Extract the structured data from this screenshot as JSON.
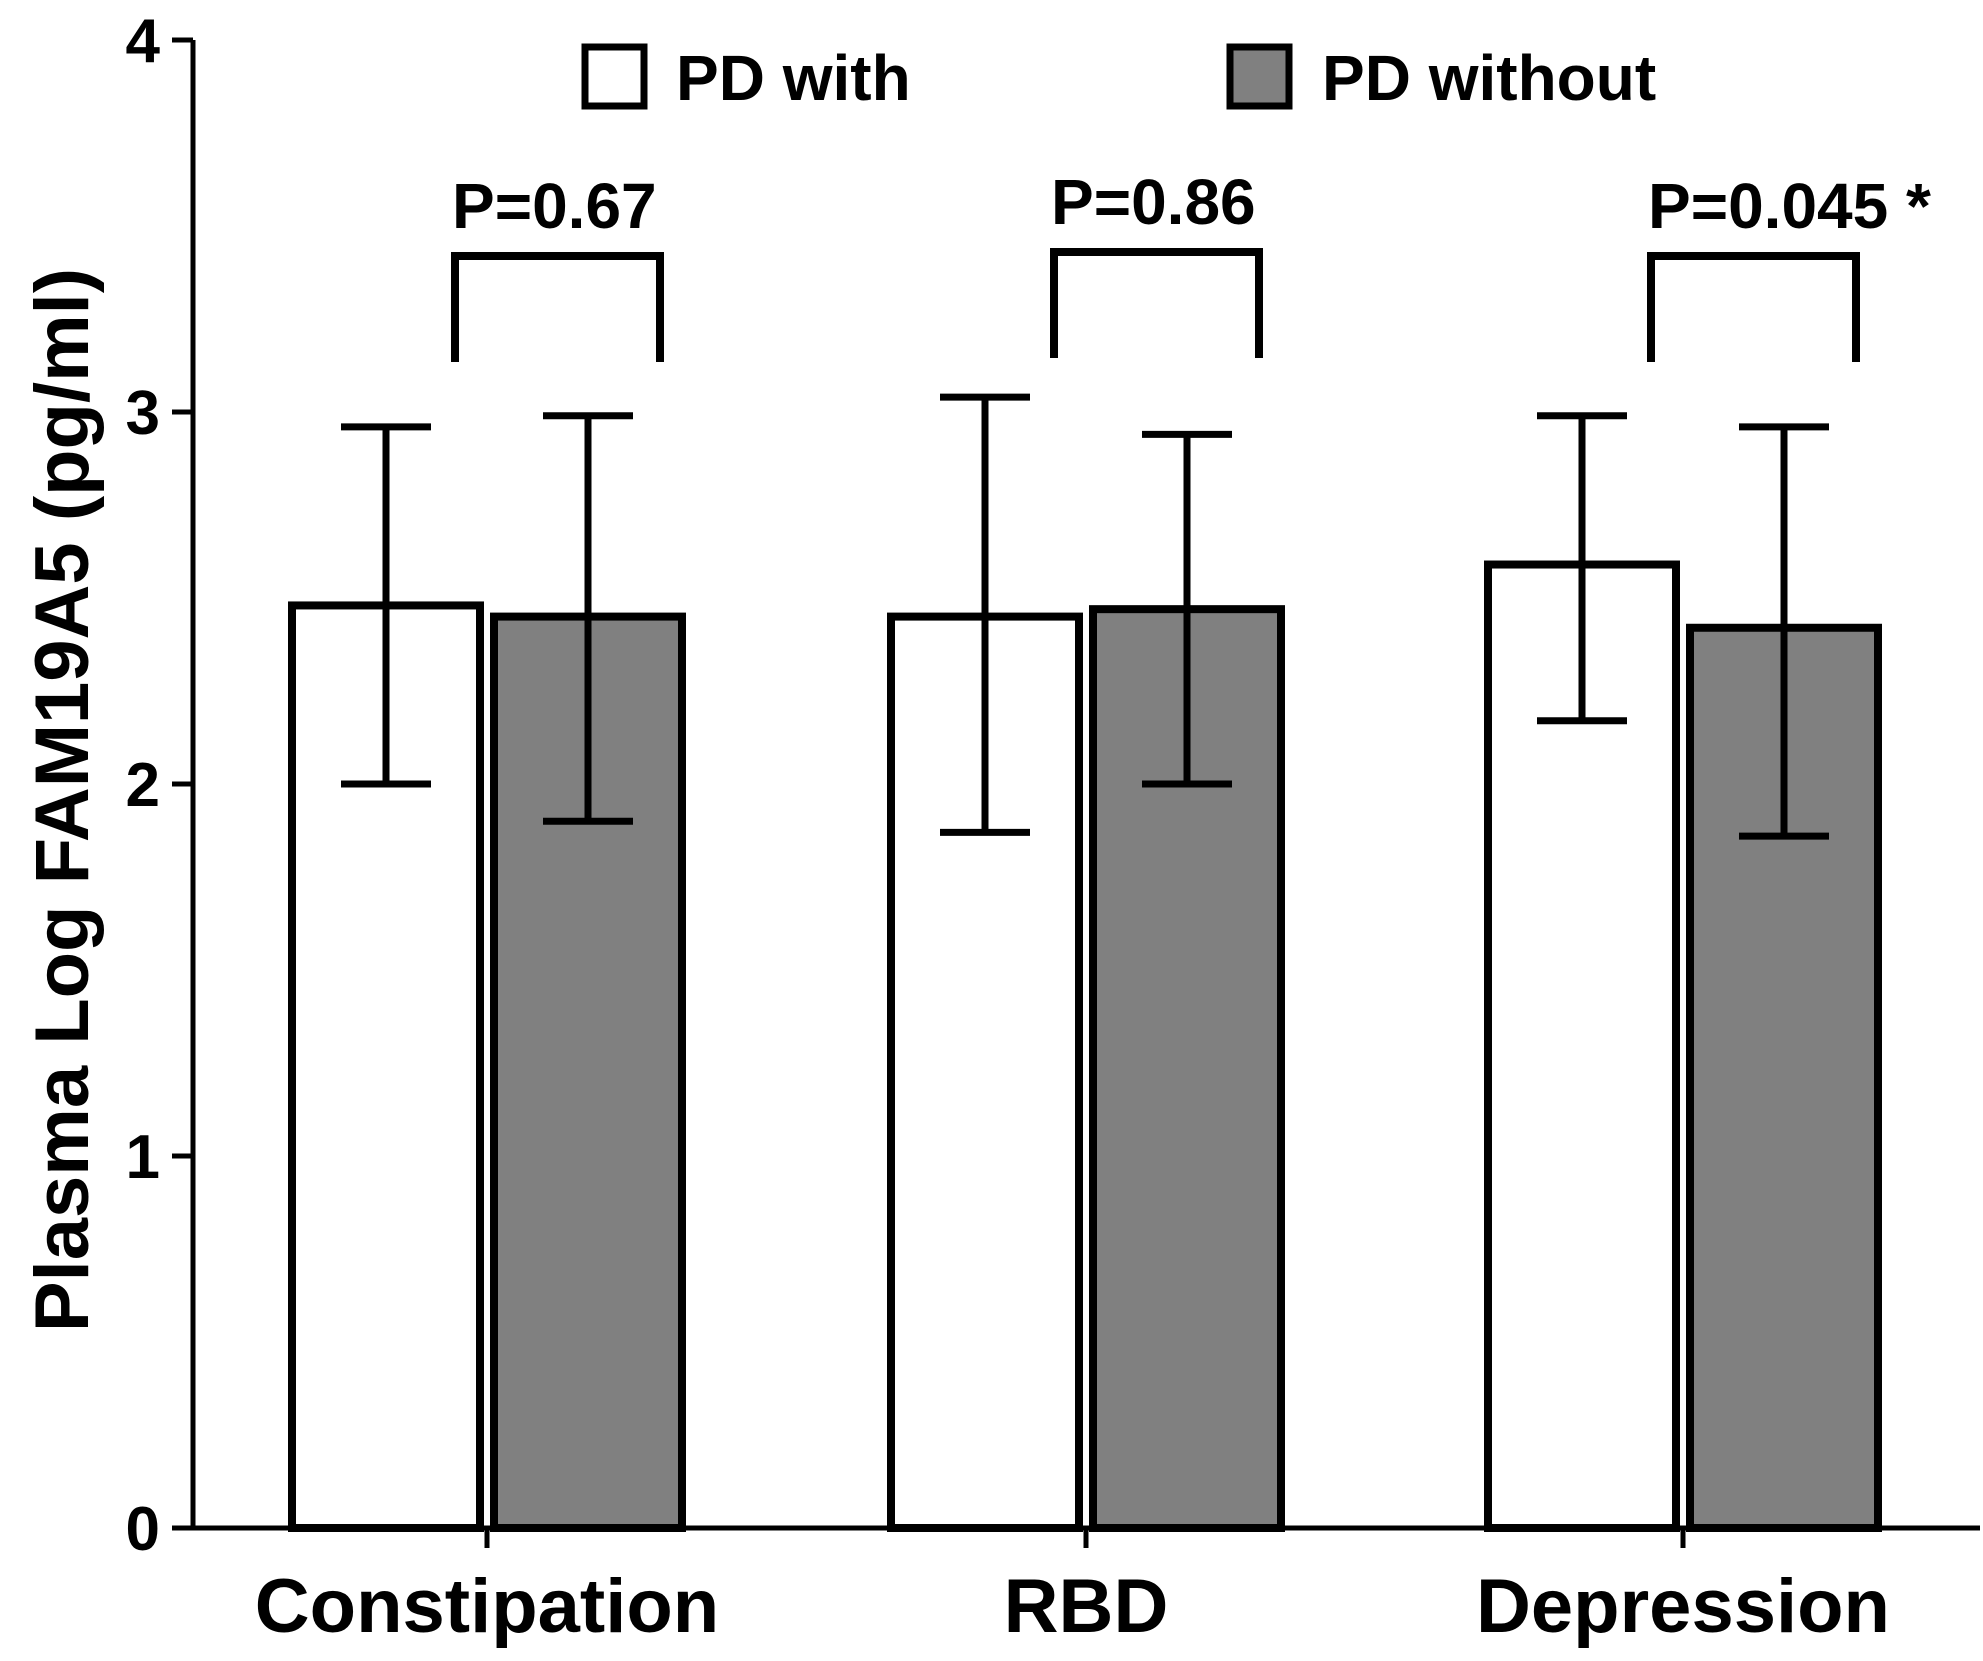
{
  "chart_data": {
    "type": "bar",
    "title": "",
    "xlabel": "",
    "ylabel": "Plasma Log FAM19A5 (pg/ml)",
    "ylim": [
      0,
      4
    ],
    "yticks": [
      "0",
      "1",
      "2",
      "3",
      "4"
    ],
    "categories": [
      "Constipation",
      "RBD",
      "Depression"
    ],
    "series": [
      {
        "name": "PD with",
        "color": "#ffffff",
        "values": [
          2.48,
          2.45,
          2.59
        ],
        "err_low": [
          2.0,
          1.87,
          2.17
        ],
        "err_high": [
          2.96,
          3.04,
          2.99
        ]
      },
      {
        "name": "PD without",
        "color": "#808080",
        "values": [
          2.45,
          2.47,
          2.42
        ],
        "err_low": [
          1.9,
          2.0,
          1.86
        ],
        "err_high": [
          2.99,
          2.94,
          2.96
        ]
      }
    ],
    "annotations": [
      "P=0.67",
      "P=0.86",
      "P=0.045 *"
    ],
    "legend_position": "top"
  }
}
